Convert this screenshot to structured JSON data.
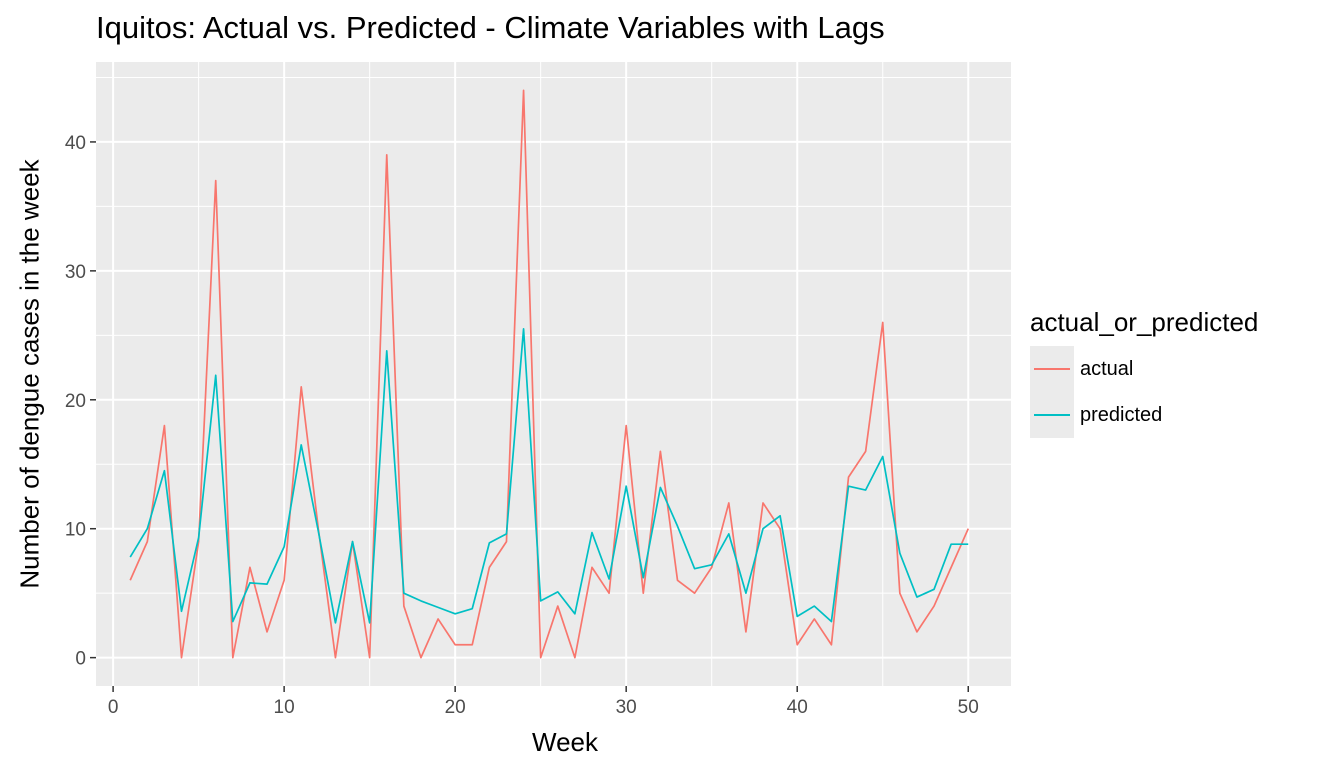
{
  "chart_data": {
    "type": "line",
    "title": "Iquitos: Actual vs. Predicted - Climate Variables with Lags",
    "xlabel": "Week",
    "ylabel": "Number of dengue cases in the week",
    "xlim": [
      -1,
      52.5
    ],
    "ylim": [
      -2.2,
      46.2
    ],
    "xticks": [
      0,
      10,
      20,
      30,
      40,
      50
    ],
    "yticks": [
      0,
      10,
      20,
      30,
      40
    ],
    "grid": true,
    "legend": {
      "title": "actual_or_predicted",
      "position": "right"
    },
    "x": [
      1,
      2,
      3,
      4,
      5,
      6,
      7,
      8,
      9,
      10,
      11,
      12,
      13,
      14,
      15,
      16,
      17,
      18,
      19,
      20,
      21,
      22,
      23,
      24,
      25,
      26,
      27,
      28,
      29,
      30,
      31,
      32,
      33,
      34,
      35,
      36,
      37,
      38,
      39,
      40,
      41,
      42,
      43,
      44,
      45,
      46,
      47,
      48,
      49,
      50
    ],
    "series": [
      {
        "name": "actual",
        "color": "#F8766D",
        "values": [
          6,
          9,
          18,
          0,
          9,
          37,
          0,
          7,
          2,
          6,
          21,
          10,
          0,
          9,
          0,
          39,
          4,
          0,
          3,
          1,
          1,
          7,
          9,
          44,
          0,
          4,
          0,
          7,
          5,
          18,
          5,
          16,
          6,
          5,
          7,
          12,
          2,
          12,
          10,
          1,
          3,
          1,
          14,
          16,
          26,
          5,
          2,
          4,
          7,
          10
        ]
      },
      {
        "name": "predicted",
        "color": "#00BFC4",
        "values": [
          7.8,
          10,
          14.5,
          3.6,
          9.3,
          21.9,
          2.8,
          5.8,
          5.7,
          8.6,
          16.5,
          9.8,
          2.7,
          9,
          2.7,
          23.8,
          5,
          4.4,
          3.9,
          3.4,
          3.8,
          8.9,
          9.6,
          25.5,
          4.4,
          5.1,
          3.4,
          9.7,
          6.1,
          13.3,
          6.2,
          13.2,
          10.2,
          6.9,
          7.2,
          9.6,
          5,
          10,
          11,
          3.2,
          4,
          2.8,
          13.3,
          13,
          15.6,
          8.1,
          4.7,
          5.3,
          8.8,
          8.8
        ]
      }
    ]
  }
}
